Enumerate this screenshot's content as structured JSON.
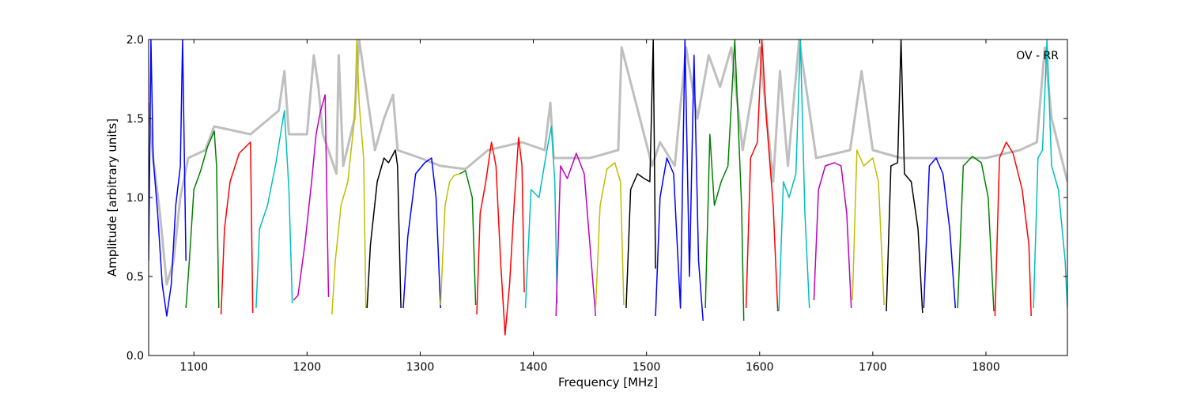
{
  "chart_data": {
    "type": "line",
    "title": "",
    "annotation": "OV - RR",
    "xlabel": "Frequency [MHz]",
    "ylabel": "Amplitude [arbitrary units]",
    "xlim": [
      1060,
      1872
    ],
    "ylim": [
      0.0,
      2.0
    ],
    "xticks": [
      "1100",
      "1200",
      "1300",
      "1400",
      "1500",
      "1600",
      "1700",
      "1800"
    ],
    "xtick_values": [
      1100,
      1200,
      1300,
      1400,
      1500,
      1600,
      1700,
      1800
    ],
    "yticks": [
      "0.0",
      "0.5",
      "1.0",
      "1.5",
      "2.0"
    ],
    "ytick_values": [
      0.0,
      0.5,
      1.0,
      1.5,
      2.0
    ],
    "grid": false,
    "background_series_color": "#bfbfbf",
    "palette": [
      "#0000ff",
      "#008000",
      "#ff0000",
      "#00bfbf",
      "#bf00bf",
      "#bfbf00",
      "#000000"
    ],
    "series": [
      {
        "color": "#0000ff",
        "x": [
          1060,
          1062,
          1064,
          1068,
          1072,
          1076,
          1080,
          1084,
          1088,
          1090,
          1093
        ],
        "y": [
          0.6,
          2.0,
          1.25,
          0.9,
          0.45,
          0.25,
          0.45,
          0.95,
          1.2,
          2.0,
          0.6
        ]
      },
      {
        "color": "#008000",
        "x": [
          1093,
          1096,
          1100,
          1106,
          1112,
          1118,
          1120,
          1122
        ],
        "y": [
          0.3,
          0.6,
          1.05,
          1.17,
          1.32,
          1.42,
          1.2,
          0.3
        ]
      },
      {
        "color": "#ff0000",
        "x": [
          1124,
          1127,
          1132,
          1140,
          1147,
          1150,
          1152
        ],
        "y": [
          0.26,
          0.8,
          1.1,
          1.28,
          1.33,
          1.35,
          0.27
        ]
      },
      {
        "color": "#00bfbf",
        "x": [
          1155,
          1158,
          1165,
          1172,
          1180,
          1184,
          1187
        ],
        "y": [
          0.3,
          0.8,
          0.95,
          1.2,
          1.55,
          1.05,
          0.33
        ]
      },
      {
        "color": "#bf00bf",
        "x": [
          1188,
          1192,
          1198,
          1204,
          1208,
          1212,
          1216,
          1219
        ],
        "y": [
          0.35,
          0.38,
          0.7,
          1.1,
          1.4,
          1.55,
          1.65,
          0.37
        ]
      },
      {
        "color": "#bfbf00",
        "x": [
          1222,
          1225,
          1230,
          1236,
          1242,
          1244,
          1246,
          1250,
          1252
        ],
        "y": [
          0.26,
          0.6,
          0.95,
          1.1,
          1.5,
          2.0,
          1.6,
          1.25,
          0.3
        ]
      },
      {
        "color": "#000000",
        "x": [
          1253,
          1256,
          1262,
          1268,
          1272,
          1278,
          1280,
          1283
        ],
        "y": [
          0.3,
          0.7,
          1.1,
          1.25,
          1.22,
          1.3,
          1.2,
          0.3
        ]
      },
      {
        "color": "#0000ff",
        "x": [
          1285,
          1289,
          1296,
          1304,
          1310,
          1314,
          1318
        ],
        "y": [
          0.3,
          0.75,
          1.15,
          1.22,
          1.25,
          1.0,
          0.3
        ]
      },
      {
        "color": "#bfbf00",
        "x": [
          1318,
          1322,
          1326,
          1330,
          1335
        ],
        "y": [
          0.32,
          0.95,
          1.1,
          1.14,
          1.15
        ]
      },
      {
        "color": "#008000",
        "x": [
          1335,
          1340,
          1346,
          1349
        ],
        "y": [
          1.15,
          1.17,
          1.0,
          0.32
        ]
      },
      {
        "color": "#ff0000",
        "x": [
          1350,
          1353,
          1358,
          1363,
          1367,
          1371,
          1375,
          1379,
          1383,
          1387,
          1390,
          1392
        ],
        "y": [
          0.26,
          0.9,
          1.1,
          1.35,
          1.2,
          0.6,
          0.13,
          0.45,
          0.95,
          1.38,
          1.2,
          0.4
        ]
      },
      {
        "color": "#00bfbf",
        "x": [
          1393,
          1398,
          1405,
          1412,
          1416,
          1419,
          1421
        ],
        "y": [
          0.3,
          1.05,
          1.0,
          1.3,
          1.45,
          1.1,
          0.33
        ]
      },
      {
        "color": "#bf00bf",
        "x": [
          1420,
          1424,
          1430,
          1438,
          1445,
          1450,
          1455
        ],
        "y": [
          0.25,
          1.2,
          1.12,
          1.28,
          1.15,
          0.7,
          0.25
        ]
      },
      {
        "color": "#bfbf00",
        "x": [
          1455,
          1459,
          1465,
          1472,
          1477,
          1480
        ],
        "y": [
          0.3,
          0.95,
          1.18,
          1.22,
          1.1,
          0.32
        ]
      },
      {
        "color": "#000000",
        "x": [
          1482,
          1486,
          1492,
          1498,
          1503,
          1506,
          1508
        ],
        "y": [
          0.3,
          1.05,
          1.15,
          1.12,
          1.1,
          2.0,
          0.55
        ]
      },
      {
        "color": "#0000ff",
        "x": [
          1508,
          1512,
          1518,
          1524,
          1530,
          1534,
          1538,
          1542,
          1546,
          1550
        ],
        "y": [
          0.25,
          1.0,
          1.25,
          1.15,
          0.3,
          2.0,
          0.5,
          1.9,
          0.6,
          0.22
        ]
      },
      {
        "color": "#008000",
        "x": [
          1552,
          1556,
          1560,
          1566,
          1572,
          1578,
          1584,
          1586
        ],
        "y": [
          0.3,
          1.4,
          0.95,
          1.1,
          1.2,
          2.0,
          0.95,
          0.22
        ]
      },
      {
        "color": "#ff0000",
        "x": [
          1588,
          1592,
          1598,
          1602,
          1606,
          1612,
          1616
        ],
        "y": [
          0.3,
          1.25,
          1.35,
          2.0,
          1.5,
          0.95,
          0.28
        ]
      },
      {
        "color": "#00bfbf",
        "x": [
          1617,
          1621,
          1626,
          1632,
          1636,
          1640,
          1644
        ],
        "y": [
          0.28,
          1.1,
          1.0,
          1.15,
          2.0,
          0.9,
          0.3
        ]
      },
      {
        "color": "#bf00bf",
        "x": [
          1648,
          1652,
          1658,
          1666,
          1672,
          1677,
          1681
        ],
        "y": [
          0.35,
          1.05,
          1.2,
          1.22,
          1.2,
          0.9,
          0.3
        ]
      },
      {
        "color": "#bfbf00",
        "x": [
          1682,
          1686,
          1692,
          1700,
          1705,
          1710
        ],
        "y": [
          0.35,
          1.3,
          1.2,
          1.25,
          1.1,
          0.32
        ]
      },
      {
        "color": "#000000",
        "x": [
          1712,
          1716,
          1722,
          1725,
          1728,
          1734,
          1740,
          1744
        ],
        "y": [
          0.28,
          1.2,
          1.22,
          2.0,
          1.15,
          1.1,
          0.8,
          0.27
        ]
      },
      {
        "color": "#0000ff",
        "x": [
          1745,
          1750,
          1756,
          1762,
          1768,
          1773
        ],
        "y": [
          0.3,
          1.2,
          1.25,
          1.15,
          0.8,
          0.3
        ]
      },
      {
        "color": "#008000",
        "x": [
          1775,
          1780,
          1788,
          1796,
          1802,
          1807
        ],
        "y": [
          0.3,
          1.2,
          1.26,
          1.22,
          1.0,
          0.28
        ]
      },
      {
        "color": "#ff0000",
        "x": [
          1808,
          1812,
          1818,
          1824,
          1832,
          1838,
          1840
        ],
        "y": [
          0.25,
          1.25,
          1.35,
          1.28,
          1.05,
          0.7,
          0.25
        ]
      },
      {
        "color": "#00bfbf",
        "x": [
          1842,
          1846,
          1850,
          1854,
          1858,
          1864,
          1870,
          1872
        ],
        "y": [
          0.3,
          1.25,
          1.3,
          2.0,
          1.2,
          1.05,
          0.6,
          0.3
        ]
      }
    ],
    "background_series": {
      "x": [
        1060,
        1064,
        1070,
        1076,
        1082,
        1088,
        1095,
        1110,
        1118,
        1150,
        1175,
        1180,
        1184,
        1200,
        1206,
        1210,
        1214,
        1226,
        1228,
        1232,
        1242,
        1246,
        1260,
        1268,
        1276,
        1280,
        1300,
        1318,
        1340,
        1360,
        1390,
        1410,
        1415,
        1418,
        1450,
        1475,
        1478,
        1505,
        1512,
        1525,
        1535,
        1545,
        1555,
        1565,
        1575,
        1585,
        1600,
        1612,
        1618,
        1625,
        1635,
        1650,
        1680,
        1690,
        1700,
        1725,
        1760,
        1800,
        1830,
        1845,
        1852,
        1858,
        1872
      ],
      "y": [
        1.6,
        1.25,
        0.9,
        0.45,
        0.6,
        1.0,
        1.25,
        1.3,
        1.45,
        1.4,
        1.55,
        1.8,
        1.4,
        1.4,
        1.9,
        1.7,
        1.4,
        1.15,
        1.9,
        1.2,
        1.5,
        2.0,
        1.3,
        1.5,
        1.65,
        1.3,
        1.25,
        1.2,
        1.18,
        1.3,
        1.35,
        1.3,
        1.6,
        1.25,
        1.25,
        1.3,
        1.95,
        1.2,
        1.35,
        1.2,
        1.95,
        1.5,
        1.9,
        1.7,
        1.95,
        1.3,
        1.95,
        1.1,
        1.8,
        1.2,
        2.0,
        1.25,
        1.3,
        1.8,
        1.3,
        1.25,
        1.25,
        1.25,
        1.3,
        1.35,
        1.95,
        1.5,
        1.1
      ]
    }
  }
}
